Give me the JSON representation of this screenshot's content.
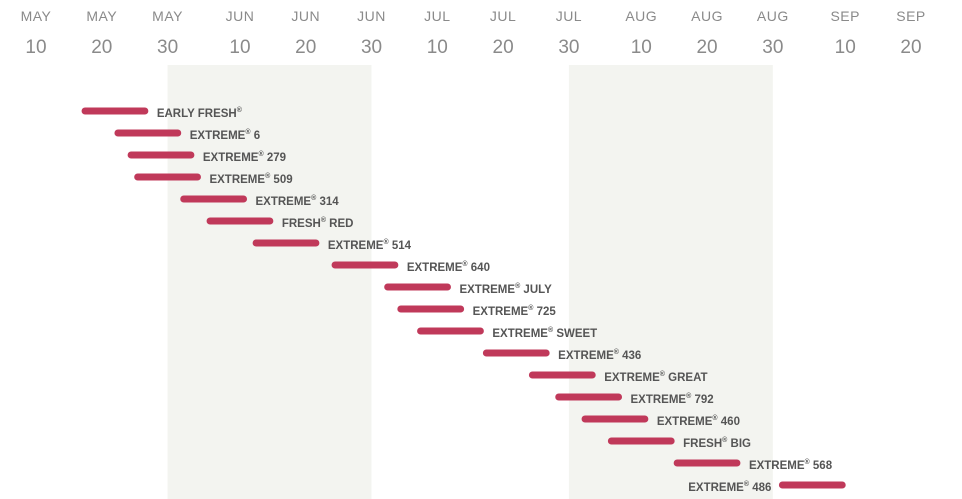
{
  "chart_data": {
    "type": "bar",
    "orientation": "horizontal-range",
    "colors": {
      "bar": "#c0395a",
      "band": "#f3f4f0",
      "tick": "#8a8a8a",
      "label": "#555555"
    },
    "x_ticks": [
      {
        "month": "MAY",
        "day": "10",
        "date": "05-10"
      },
      {
        "month": "MAY",
        "day": "20",
        "date": "05-20"
      },
      {
        "month": "MAY",
        "day": "30",
        "date": "05-30"
      },
      {
        "month": "JUN",
        "day": "10",
        "date": "06-10"
      },
      {
        "month": "JUN",
        "day": "20",
        "date": "06-20"
      },
      {
        "month": "JUN",
        "day": "30",
        "date": "06-30"
      },
      {
        "month": "JUL",
        "day": "10",
        "date": "07-10"
      },
      {
        "month": "JUL",
        "day": "20",
        "date": "07-20"
      },
      {
        "month": "JUL",
        "day": "30",
        "date": "07-30"
      },
      {
        "month": "AUG",
        "day": "10",
        "date": "08-10"
      },
      {
        "month": "AUG",
        "day": "20",
        "date": "08-20"
      },
      {
        "month": "AUG",
        "day": "30",
        "date": "08-30"
      },
      {
        "month": "SEP",
        "day": "10",
        "date": "09-10"
      },
      {
        "month": "SEP",
        "day": "20",
        "date": "09-20"
      }
    ],
    "x_range": [
      "05-10",
      "09-20"
    ],
    "shaded_bands": [
      [
        "05-30",
        "06-30"
      ],
      [
        "07-30",
        "08-30"
      ]
    ],
    "series": [
      {
        "name": "EARLY FRESH",
        "sup": "®",
        "start": "05-17",
        "end": "05-27",
        "label_side": "right"
      },
      {
        "name": "EXTREME",
        "sup": "®",
        "suffix": " 6",
        "start": "05-22",
        "end": "06-01",
        "label_side": "right"
      },
      {
        "name": "EXTREME",
        "sup": "®",
        "suffix": " 279",
        "start": "05-24",
        "end": "06-03",
        "label_side": "right"
      },
      {
        "name": "EXTREME",
        "sup": "®",
        "suffix": " 509",
        "start": "05-25",
        "end": "06-04",
        "label_side": "right"
      },
      {
        "name": "EXTREME",
        "sup": "®",
        "suffix": " 314",
        "start": "06-01",
        "end": "06-11",
        "label_side": "right"
      },
      {
        "name": "FRESH",
        "sup": "®",
        "suffix": " RED",
        "start": "06-05",
        "end": "06-15",
        "label_side": "right"
      },
      {
        "name": "EXTREME",
        "sup": "®",
        "suffix": " 514",
        "start": "06-12",
        "end": "06-22",
        "label_side": "right"
      },
      {
        "name": "EXTREME",
        "sup": "®",
        "suffix": " 640",
        "start": "06-24",
        "end": "07-04",
        "label_side": "right"
      },
      {
        "name": "EXTREME",
        "sup": "®",
        "suffix": " JULY",
        "start": "07-02",
        "end": "07-12",
        "label_side": "right"
      },
      {
        "name": "EXTREME",
        "sup": "®",
        "suffix": " 725",
        "start": "07-04",
        "end": "07-14",
        "label_side": "right"
      },
      {
        "name": "EXTREME",
        "sup": "®",
        "suffix": " SWEET",
        "start": "07-07",
        "end": "07-17",
        "label_side": "right"
      },
      {
        "name": "EXTREME",
        "sup": "®",
        "suffix": " 436",
        "start": "07-17",
        "end": "07-27",
        "label_side": "right"
      },
      {
        "name": "EXTREME",
        "sup": "®",
        "suffix": " GREAT",
        "start": "07-24",
        "end": "08-03",
        "label_side": "right"
      },
      {
        "name": "EXTREME",
        "sup": "®",
        "suffix": " 792",
        "start": "07-28",
        "end": "08-07",
        "label_side": "right"
      },
      {
        "name": "EXTREME",
        "sup": "®",
        "suffix": " 460",
        "start": "08-01",
        "end": "08-11",
        "label_side": "right"
      },
      {
        "name": "FRESH",
        "sup": "®",
        "suffix": " BIG",
        "start": "08-05",
        "end": "08-15",
        "label_side": "right"
      },
      {
        "name": "EXTREME",
        "sup": "®",
        "suffix": " 568",
        "start": "08-15",
        "end": "08-25",
        "label_side": "right"
      },
      {
        "name": "EXTREME",
        "sup": "®",
        "suffix": " 486",
        "start": "08-31",
        "end": "09-10",
        "label_side": "left"
      }
    ]
  }
}
